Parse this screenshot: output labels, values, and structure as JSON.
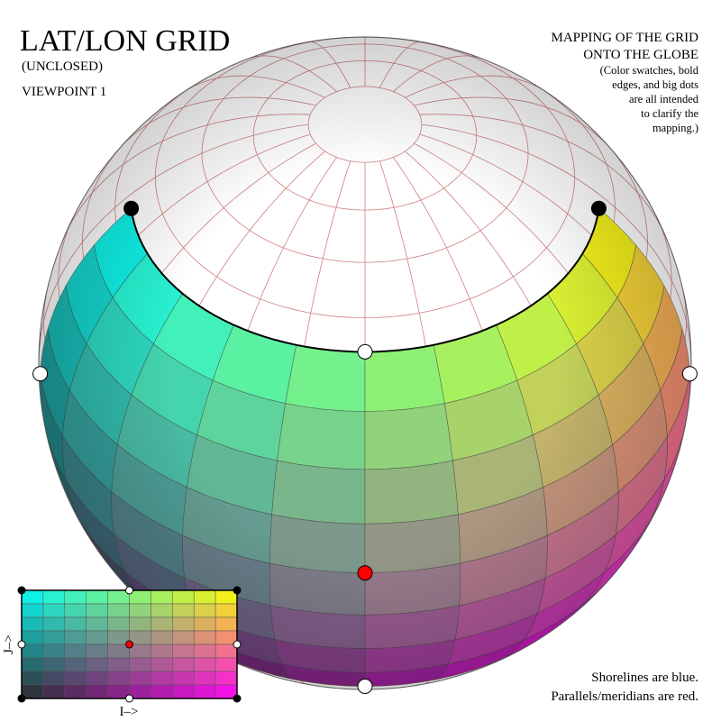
{
  "header": {
    "title": "LAT/LON GRID",
    "subtitle": "(UNCLOSED)",
    "viewpoint": "VIEWPOINT 1"
  },
  "note": {
    "lines": [
      "MAPPING OF THE GRID",
      "ONTO THE GLOBE",
      "(Color swatches, bold",
      "edges, and big dots",
      "are all intended",
      "to clarify the",
      "mapping.)"
    ]
  },
  "legend": {
    "lines": [
      "Shorelines are blue.",
      "Parallels/meridians are red."
    ]
  },
  "inset": {
    "x_label": "I–>",
    "y_label": "J–>"
  }
}
